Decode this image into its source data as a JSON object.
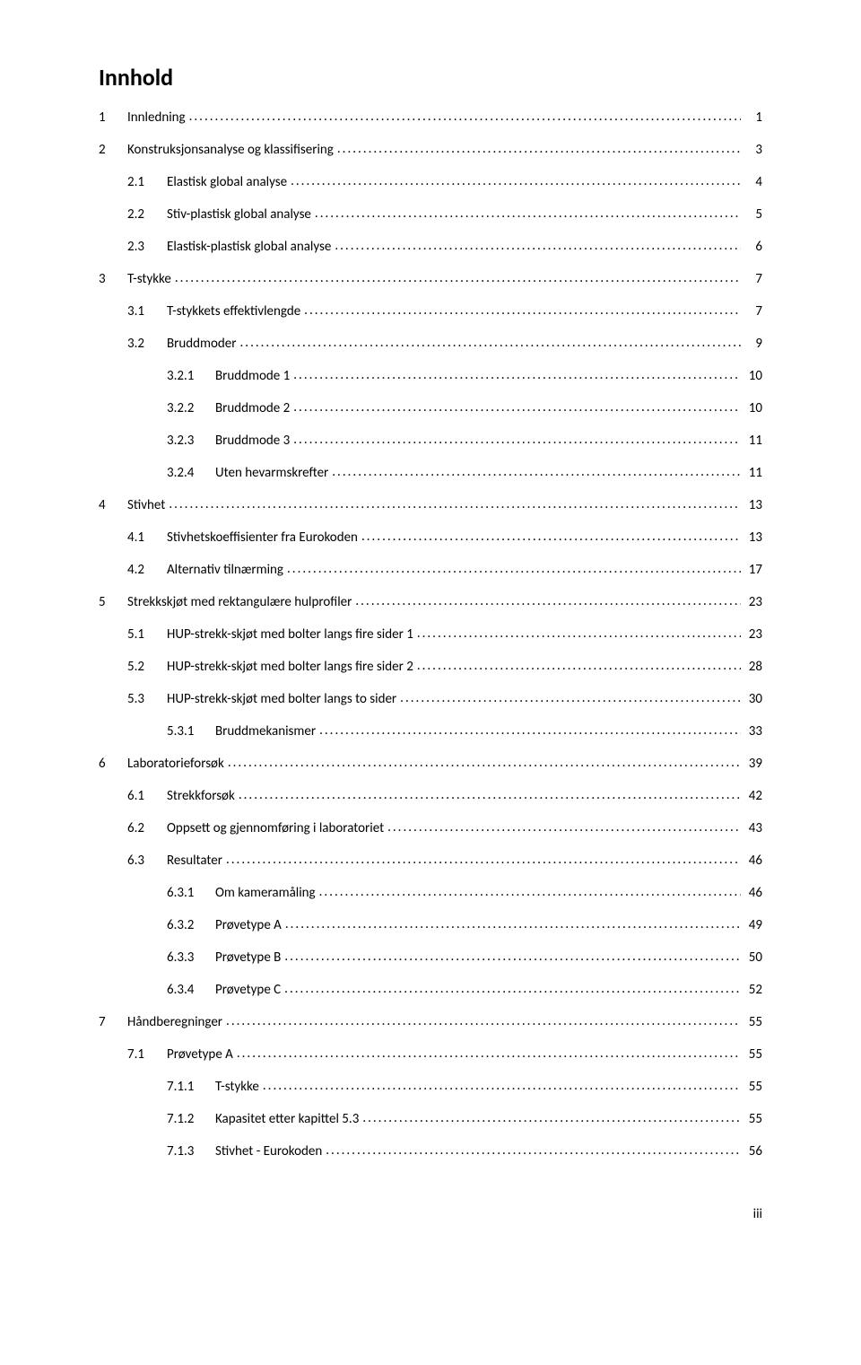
{
  "title": "Innhold",
  "page_number_bottom": "iii",
  "toc": [
    {
      "level": 1,
      "num": "1",
      "label": "Innledning",
      "page": "1"
    },
    {
      "level": 1,
      "num": "2",
      "label": "Konstruksjonsanalyse og klassifisering",
      "page": "3"
    },
    {
      "level": 2,
      "num": "2.1",
      "label": "Elastisk global analyse",
      "page": "4"
    },
    {
      "level": 2,
      "num": "2.2",
      "label": "Stiv-plastisk global analyse",
      "page": "5"
    },
    {
      "level": 2,
      "num": "2.3",
      "label": "Elastisk-plastisk global analyse",
      "page": "6"
    },
    {
      "level": 1,
      "num": "3",
      "label": "T-stykke",
      "page": "7"
    },
    {
      "level": 2,
      "num": "3.1",
      "label": "T-stykkets effektivlengde",
      "page": "7"
    },
    {
      "level": 2,
      "num": "3.2",
      "label": "Bruddmoder",
      "page": "9"
    },
    {
      "level": 3,
      "num": "3.2.1",
      "label": "Bruddmode 1",
      "page": "10"
    },
    {
      "level": 3,
      "num": "3.2.2",
      "label": "Bruddmode 2",
      "page": "10"
    },
    {
      "level": 3,
      "num": "3.2.3",
      "label": "Bruddmode 3",
      "page": "11"
    },
    {
      "level": 3,
      "num": "3.2.4",
      "label": "Uten hevarmskrefter",
      "page": "11"
    },
    {
      "level": 1,
      "num": "4",
      "label": "Stivhet",
      "page": "13"
    },
    {
      "level": 2,
      "num": "4.1",
      "label": "Stivhetskoeffisienter fra Eurokoden",
      "page": "13"
    },
    {
      "level": 2,
      "num": "4.2",
      "label": "Alternativ tilnærming",
      "page": "17"
    },
    {
      "level": 1,
      "num": "5",
      "label": "Strekkskjøt med rektangulære hulprofiler",
      "page": "23"
    },
    {
      "level": 2,
      "num": "5.1",
      "label": "HUP-strekk-skjøt med bolter langs fire sider 1",
      "page": "23"
    },
    {
      "level": 2,
      "num": "5.2",
      "label": "HUP-strekk-skjøt med bolter langs fire sider 2",
      "page": "28"
    },
    {
      "level": 2,
      "num": "5.3",
      "label": "HUP-strekk-skjøt med bolter langs to sider",
      "page": "30"
    },
    {
      "level": 3,
      "num": "5.3.1",
      "label": "Bruddmekanismer",
      "page": "33"
    },
    {
      "level": 1,
      "num": "6",
      "label": "Laboratorieforsøk",
      "page": "39"
    },
    {
      "level": 2,
      "num": "6.1",
      "label": "Strekkforsøk",
      "page": "42"
    },
    {
      "level": 2,
      "num": "6.2",
      "label": "Oppsett og gjennomføring i laboratoriet",
      "page": "43"
    },
    {
      "level": 2,
      "num": "6.3",
      "label": "Resultater",
      "page": "46"
    },
    {
      "level": 3,
      "num": "6.3.1",
      "label": "Om kameramåling",
      "page": "46"
    },
    {
      "level": 3,
      "num": "6.3.2",
      "label": "Prøvetype A",
      "page": "49"
    },
    {
      "level": 3,
      "num": "6.3.3",
      "label": "Prøvetype B",
      "page": "50"
    },
    {
      "level": 3,
      "num": "6.3.4",
      "label": "Prøvetype C",
      "page": "52"
    },
    {
      "level": 1,
      "num": "7",
      "label": "Håndberegninger",
      "page": "55"
    },
    {
      "level": 2,
      "num": "7.1",
      "label": "Prøvetype A",
      "page": "55"
    },
    {
      "level": 3,
      "num": "7.1.1",
      "label": "T-stykke",
      "page": "55"
    },
    {
      "level": 3,
      "num": "7.1.2",
      "label": "Kapasitet etter kapittel 5.3",
      "page": "55"
    },
    {
      "level": 3,
      "num": "7.1.3",
      "label": "Stivhet - Eurokoden",
      "page": "56"
    }
  ]
}
